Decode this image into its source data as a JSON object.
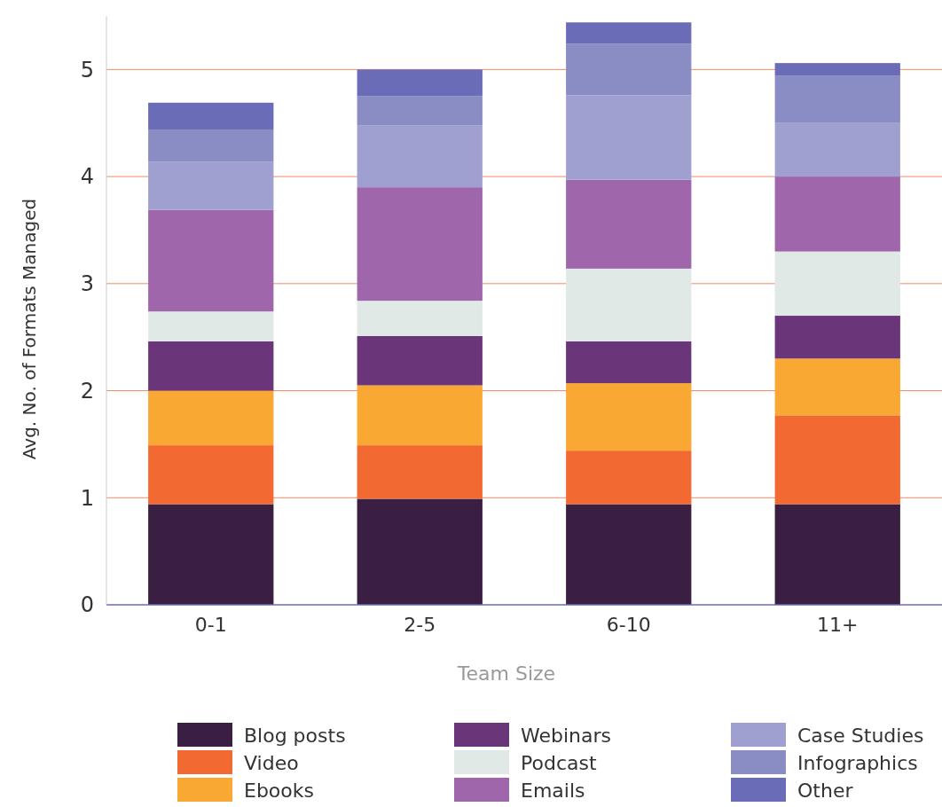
{
  "chart_data": {
    "type": "bar",
    "stacked": true,
    "xlabel": "Team Size",
    "ylabel": "Avg. No. of Formats Managed",
    "categories": [
      "0-1",
      "2-5",
      "6-10",
      "11+"
    ],
    "ylim": [
      0,
      5.5
    ],
    "yticks": [
      0,
      1,
      2,
      3,
      4,
      5
    ],
    "grid": "y",
    "legend": "bottom",
    "series": [
      {
        "name": "Blog posts",
        "color": "#3a1f42",
        "values": [
          0.94,
          0.99,
          0.94,
          0.94
        ]
      },
      {
        "name": "Video",
        "color": "#f26a32",
        "values": [
          0.55,
          0.5,
          0.5,
          0.83
        ]
      },
      {
        "name": "Ebooks",
        "color": "#f9a834",
        "values": [
          0.51,
          0.56,
          0.63,
          0.53
        ]
      },
      {
        "name": "Webinars",
        "color": "#6b357a",
        "values": [
          0.46,
          0.46,
          0.39,
          0.4
        ]
      },
      {
        "name": "Podcast",
        "color": "#e0e9e5",
        "values": [
          0.28,
          0.33,
          0.68,
          0.6
        ]
      },
      {
        "name": "Emails",
        "color": "#a066ab",
        "values": [
          0.95,
          1.06,
          0.83,
          0.7
        ]
      },
      {
        "name": "Case Studies",
        "color": "#a0a0d0",
        "values": [
          0.45,
          0.58,
          0.79,
          0.5
        ]
      },
      {
        "name": "Infographics",
        "color": "#8a8cc4",
        "values": [
          0.3,
          0.27,
          0.48,
          0.44
        ]
      },
      {
        "name": "Other",
        "color": "#6a6cb8",
        "values": [
          0.25,
          0.25,
          0.2,
          0.12
        ]
      }
    ]
  }
}
